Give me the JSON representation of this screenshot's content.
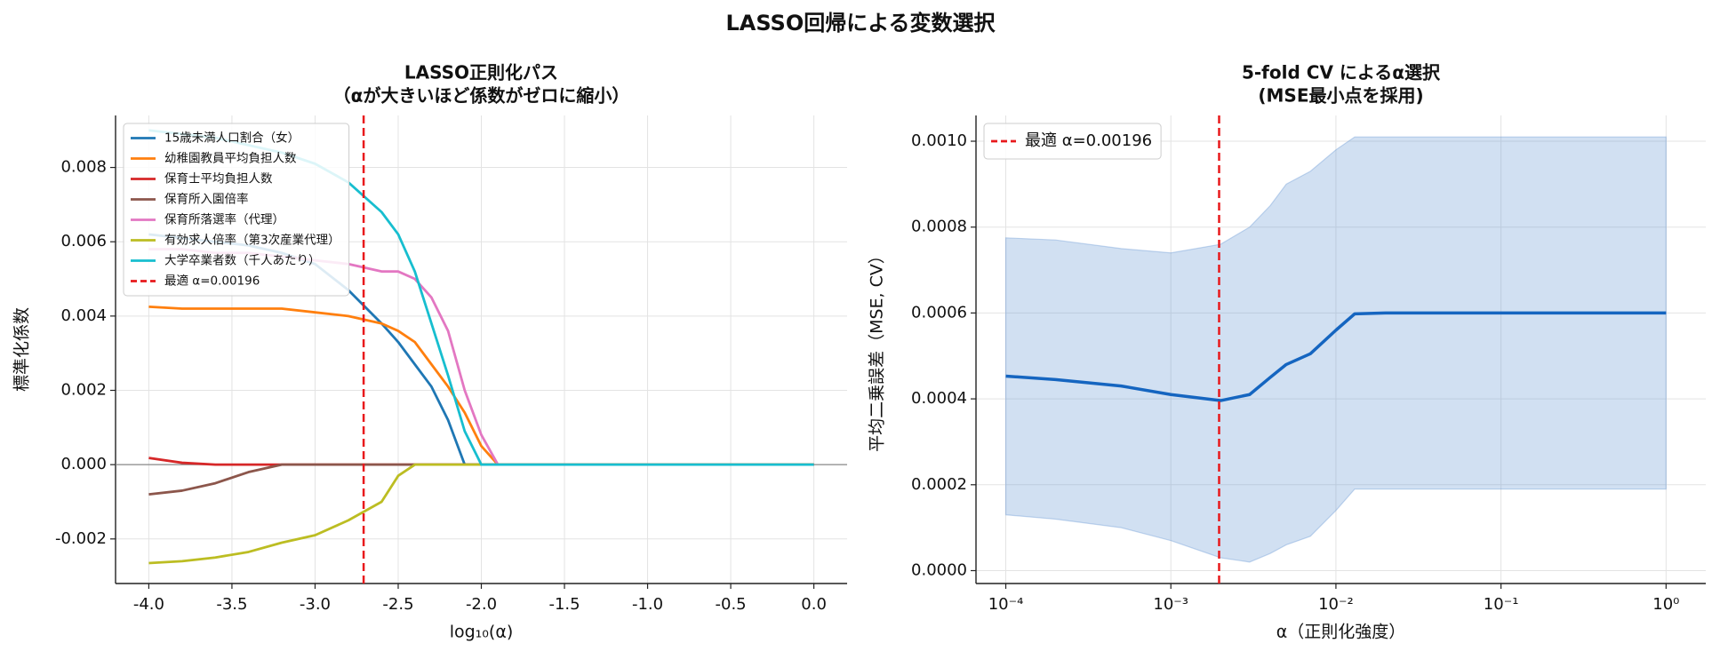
{
  "suptitle": "LASSO回帰による変数選択",
  "chart_data": [
    {
      "type": "line",
      "title": [
        "LASSO正則化パス",
        "（αが大きいほど係数がゼロに縮小）"
      ],
      "xlabel": "log₁₀(α)",
      "ylabel": "標準化係数",
      "xlim": [
        -4.2,
        0.2
      ],
      "ylim": [
        -0.0032,
        0.0094
      ],
      "xticks": [
        {
          "value": -4,
          "label": "-4.0"
        },
        -3.5,
        {
          "value": -3,
          "label": "-3.0"
        },
        -2.5,
        {
          "value": -2,
          "label": "-2.0"
        },
        -1.5,
        {
          "value": -1,
          "label": "-1.0"
        },
        -0.5,
        {
          "value": 0,
          "label": "0.0"
        }
      ],
      "yticks": [
        -0.002,
        {
          "value": 0,
          "label": "0.000"
        },
        0.002,
        0.004,
        0.006,
        0.008
      ],
      "grid": true,
      "legend": "upper left",
      "hline": 0,
      "x": [
        -4.0,
        -3.8,
        -3.6,
        -3.4,
        -3.2,
        -3.0,
        -2.8,
        -2.6,
        -2.5,
        -2.4,
        -2.3,
        -2.2,
        -2.1,
        -2.0,
        -1.9,
        -1.5,
        -1.0,
        -0.5,
        0.0
      ],
      "series": [
        {
          "name": "15歳未満人口割合（女）",
          "color": "#1f77b4",
          "values": [
            0.0062,
            0.0061,
            0.006,
            0.0059,
            0.0057,
            0.0054,
            0.0047,
            0.0038,
            0.0033,
            0.0027,
            0.0021,
            0.0012,
            0,
            0,
            0,
            0,
            0,
            0,
            0
          ]
        },
        {
          "name": "幼稚園教員平均負担人数",
          "color": "#ff7f0e",
          "values": [
            0.00425,
            0.0042,
            0.0042,
            0.0042,
            0.0042,
            0.0041,
            0.004,
            0.0038,
            0.0036,
            0.0033,
            0.0027,
            0.0021,
            0.0014,
            0.0005,
            0,
            0,
            0,
            0,
            0
          ]
        },
        {
          "name": "保育士平均負担人数",
          "color": "#d62728",
          "values": [
            0.00018,
            5e-05,
            0,
            0,
            0,
            0,
            0,
            0,
            0,
            0,
            0,
            0,
            0,
            0,
            0,
            0,
            0,
            0,
            0
          ]
        },
        {
          "name": "保育所入園倍率",
          "color": "#8c564b",
          "values": [
            -0.0008,
            -0.0007,
            -0.0005,
            -0.0002,
            0,
            0,
            0,
            0,
            0,
            0,
            0,
            0,
            0,
            0,
            0,
            0,
            0,
            0,
            0
          ]
        },
        {
          "name": "保育所落選率（代理）",
          "color": "#e377c2",
          "values": [
            0.0058,
            0.0058,
            0.0057,
            0.0057,
            0.0056,
            0.0055,
            0.0054,
            0.0052,
            0.0052,
            0.005,
            0.0045,
            0.0036,
            0.002,
            0.0008,
            0,
            0,
            0,
            0,
            0
          ]
        },
        {
          "name": "有効求人倍率（第3次産業代理）",
          "color": "#bcbd22",
          "values": [
            -0.00265,
            -0.0026,
            -0.0025,
            -0.00235,
            -0.0021,
            -0.0019,
            -0.0015,
            -0.001,
            -0.0003,
            0,
            0,
            0,
            0,
            0,
            0,
            0,
            0,
            0,
            0
          ]
        },
        {
          "name": "大学卒業者数（千人あたり）",
          "color": "#17becf",
          "values": [
            0.009,
            0.0089,
            0.0088,
            0.0086,
            0.0084,
            0.0081,
            0.0076,
            0.0068,
            0.0062,
            0.0052,
            0.0038,
            0.0024,
            0.0009,
            0,
            0,
            0,
            0,
            0,
            0
          ]
        }
      ],
      "vline": {
        "x": -2.708,
        "label": "最適 α=0.00196",
        "color": "#e8191c"
      }
    },
    {
      "type": "line",
      "title": [
        "5-fold CV によるα選択",
        "(MSE最小点を採用)"
      ],
      "xlabel": "α（正則化強度）",
      "ylabel": "平均二乗誤差（MSE, CV）",
      "xscale": "log",
      "xlim": [
        6.6e-05,
        1.74
      ],
      "ylim": [
        -3e-05,
        0.00106
      ],
      "xticks": [
        {
          "value": 0.0001,
          "label": "10⁻⁴"
        },
        {
          "value": 0.001,
          "label": "10⁻³"
        },
        {
          "value": 0.01,
          "label": "10⁻²"
        },
        {
          "value": 0.1,
          "label": "10⁻¹"
        },
        {
          "value": 1,
          "label": "10⁰"
        }
      ],
      "yticks": [
        {
          "value": 0,
          "label": "0.0000"
        },
        {
          "value": 0.0002,
          "label": "0.0002"
        },
        {
          "value": 0.0004,
          "label": "0.0004"
        },
        {
          "value": 0.0006,
          "label": "0.0006"
        },
        {
          "value": 0.0008,
          "label": "0.0008"
        },
        {
          "value": 0.001,
          "label": "0.0010"
        }
      ],
      "grid": true,
      "legend": "upper left",
      "x": [
        0.0001,
        0.0002,
        0.0005,
        0.001,
        0.002,
        0.003,
        0.004,
        0.005,
        0.007,
        0.01,
        0.013,
        0.02,
        0.1,
        1
      ],
      "series": [
        {
          "color": "#1565c0",
          "values": [
            0.000453,
            0.000445,
            0.00043,
            0.00041,
            0.000396,
            0.00041,
            0.00045,
            0.00048,
            0.000505,
            0.00056,
            0.000598,
            0.0006,
            0.0006,
            0.0006
          ]
        }
      ],
      "band": {
        "color": "#5b8fd0",
        "upper": [
          0.000775,
          0.00077,
          0.00075,
          0.00074,
          0.00076,
          0.0008,
          0.00085,
          0.0009,
          0.00093,
          0.00098,
          0.00101,
          0.00101,
          0.00101,
          0.00101
        ],
        "lower": [
          0.00013,
          0.00012,
          0.0001,
          7e-05,
          3e-05,
          2e-05,
          4e-05,
          6e-05,
          8e-05,
          0.00014,
          0.00019,
          0.00019,
          0.00019,
          0.00019
        ]
      },
      "vline": {
        "x": 0.00196,
        "label": "最適 α=0.00196",
        "color": "#e8191c"
      }
    }
  ]
}
